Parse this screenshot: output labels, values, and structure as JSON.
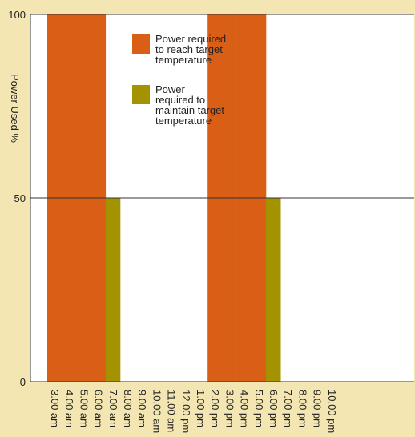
{
  "chart_data": {
    "type": "bar",
    "title": "",
    "xlabel": "",
    "ylabel": "Power Used %",
    "ylim": [
      0,
      100
    ],
    "yticks": [
      "0",
      "50",
      "100"
    ],
    "categories": [
      "3.00 am",
      "4.00 am",
      "5.00 am",
      "6.00 am",
      "7.00 am",
      "8.00 am",
      "9.00 am",
      "10.00 am",
      "11.00 am",
      "12.00 pm",
      "1.00 pm",
      "2.00 pm",
      "3.00 pm",
      "4.00 pm",
      "5.00 pm",
      "6.00 pm",
      "7.00 pm",
      "8.00 pm",
      "9.00 pm",
      "10.00 pm"
    ],
    "series": [
      {
        "name": "Power required to reach target temperature",
        "legend_lines": [
          "Power required",
          "to reach target",
          "temperature"
        ],
        "color": "#d95f16",
        "values": [
          100,
          100,
          100,
          100,
          0,
          0,
          0,
          0,
          0,
          0,
          0,
          100,
          100,
          100,
          100,
          0,
          0,
          0,
          0,
          0
        ]
      },
      {
        "name": "Power required to maintain target temperature",
        "legend_lines": [
          "Power",
          "required to",
          "maintain target",
          "temperature"
        ],
        "color": "#a39300",
        "values": [
          0,
          0,
          0,
          0,
          50,
          0,
          0,
          0,
          0,
          0,
          0,
          0,
          0,
          0,
          0,
          50,
          0,
          0,
          0,
          0
        ]
      }
    ],
    "grid": true,
    "legend_position": "top-center",
    "plot_background": "#ffffff",
    "page_background": "#f3e6b3"
  }
}
